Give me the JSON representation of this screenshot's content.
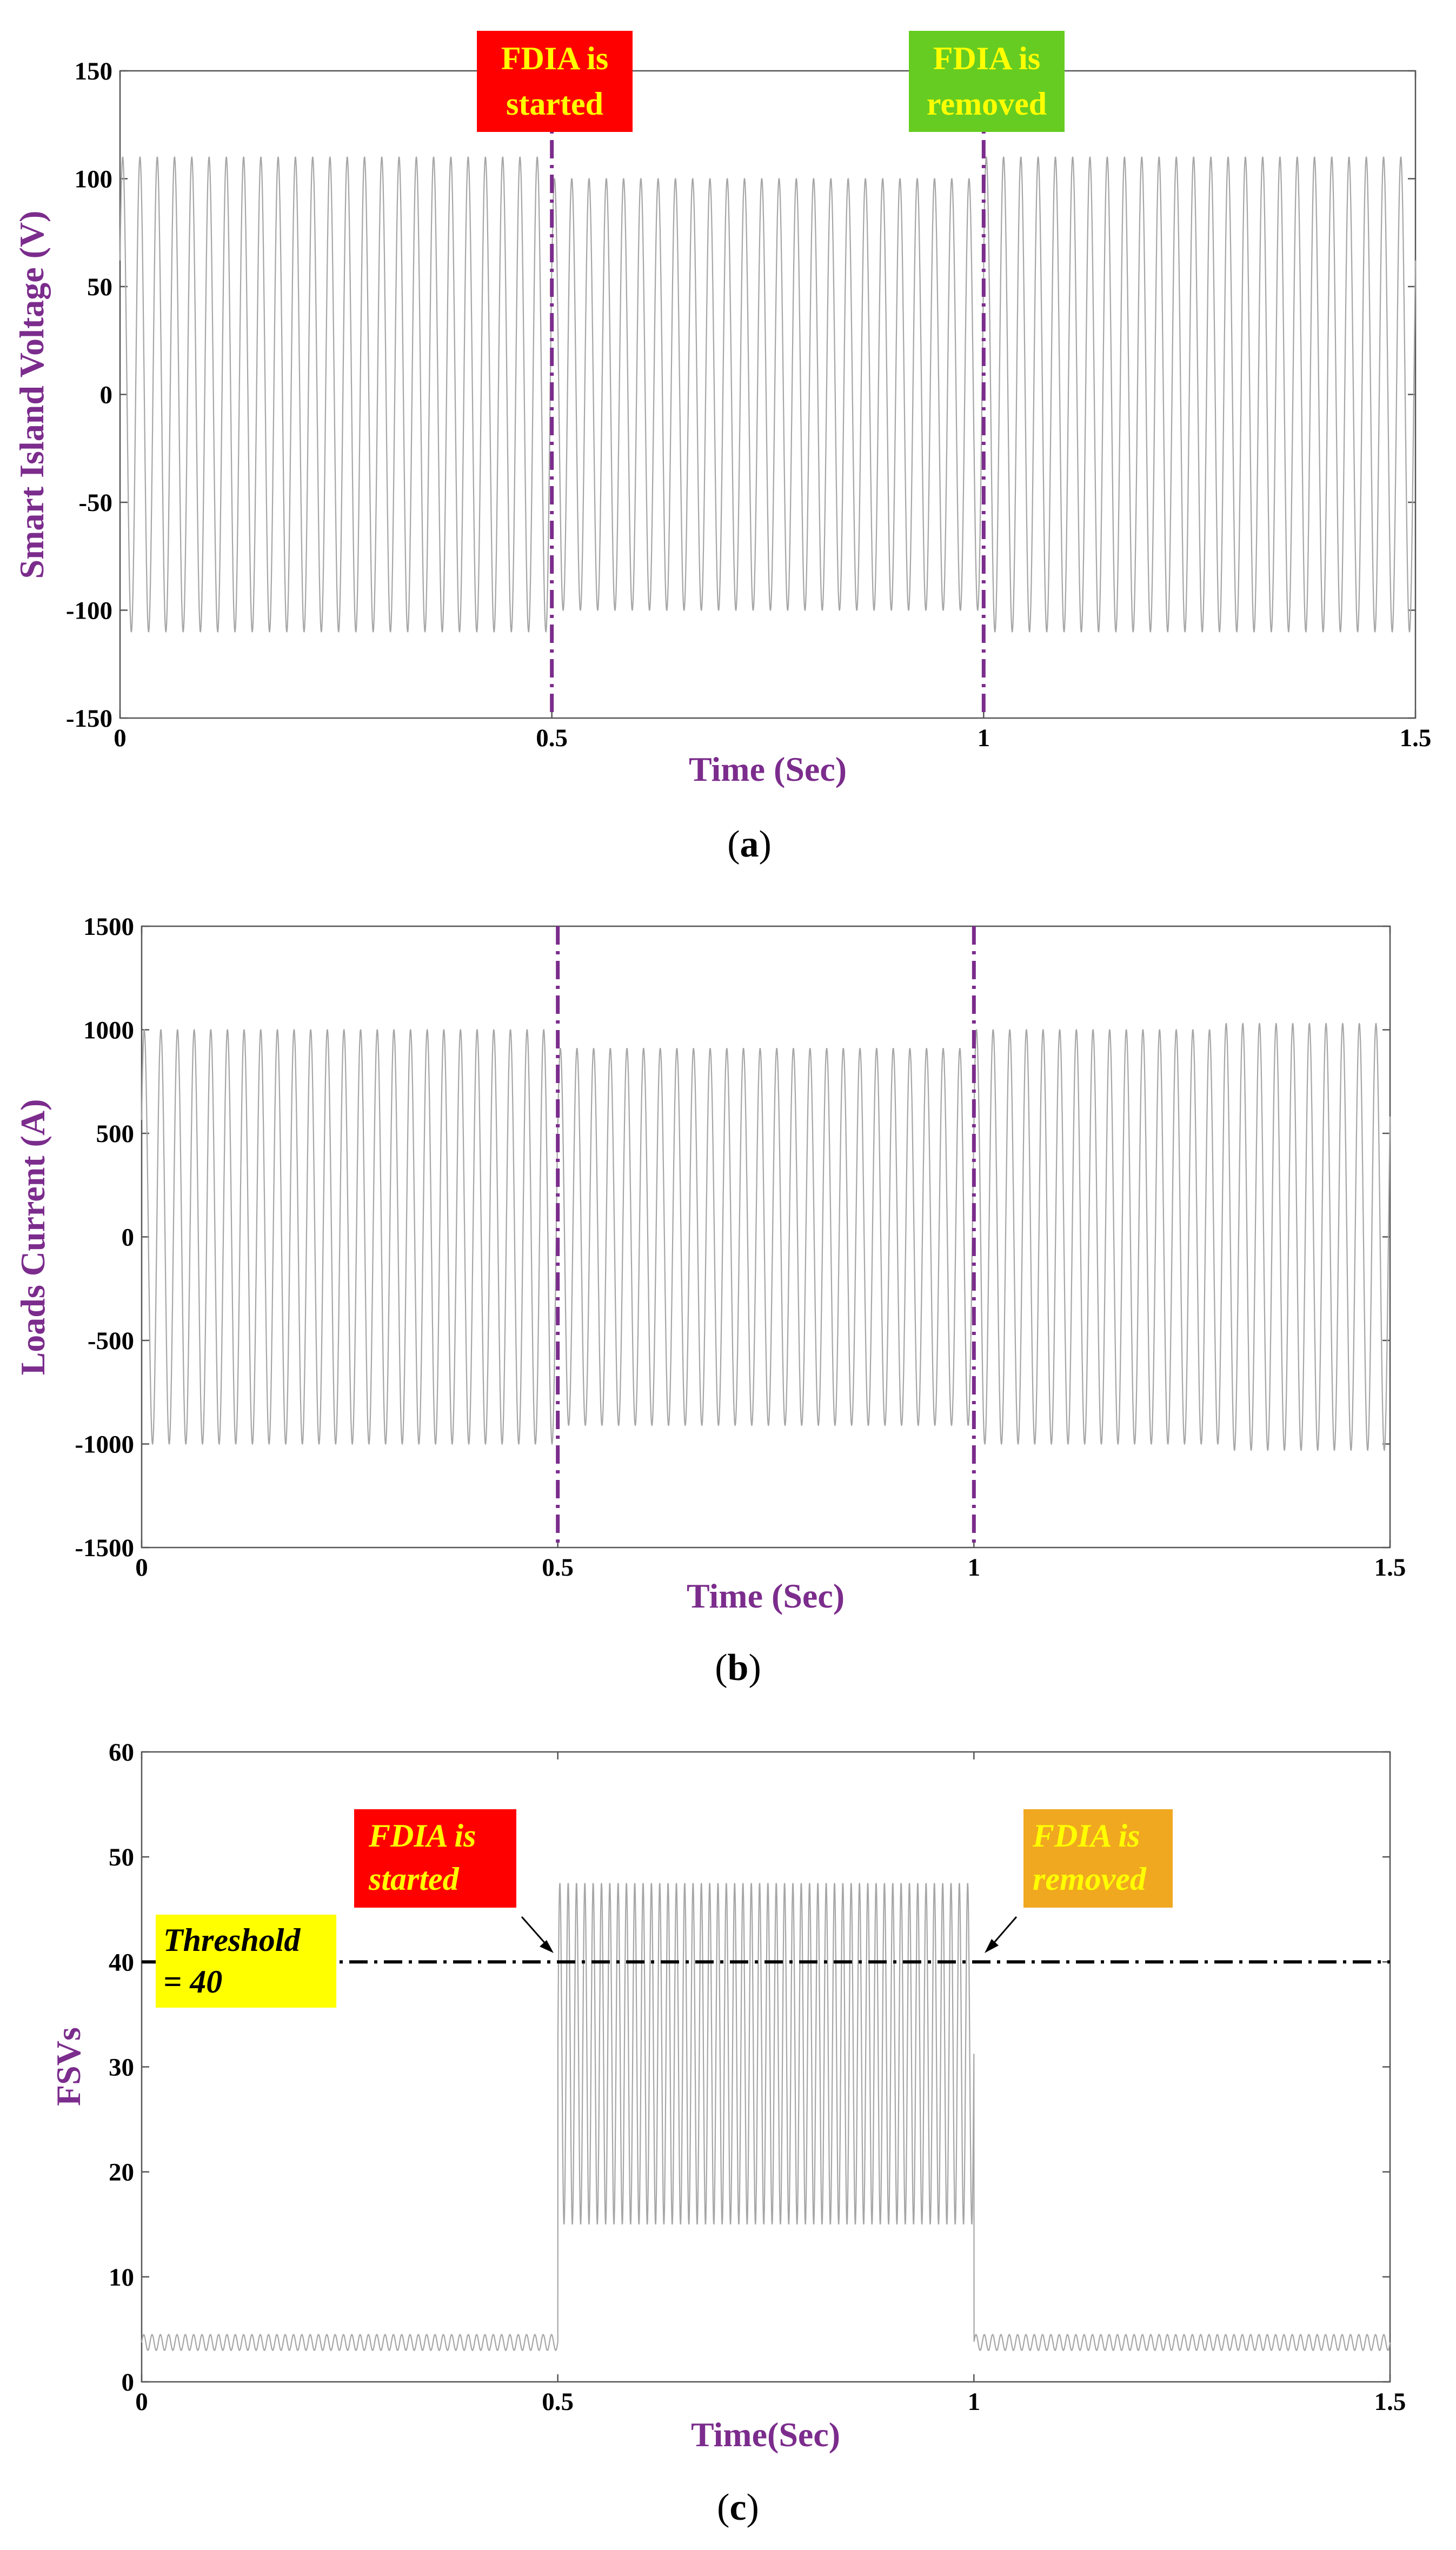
{
  "colors": {
    "signal": "#a6a6a6",
    "event_line": "#7b2c8c",
    "axis_label": "#7b2c8c",
    "threshold_line": "#000000",
    "red_box": "#ff0000",
    "green_box": "#66cc22",
    "yellow_box": "#ffff00",
    "orange_box": "#f0a820",
    "yellow_text": "#ffff00",
    "orange_text": "#ffff00"
  },
  "chart_data": [
    {
      "id": "a",
      "type": "line",
      "caption": "a",
      "xlabel": "Time (Sec)",
      "ylabel": "Smart Island Voltage (V)",
      "xlim": [
        0,
        1.5
      ],
      "ylim": [
        -150,
        150
      ],
      "xticks": [
        "0",
        "0.5",
        "1",
        "1.5"
      ],
      "xtick_values": [
        0,
        0.5,
        1,
        1.5
      ],
      "yticks": [
        "150",
        "100",
        "50",
        "0",
        "-50",
        "-100",
        "-150"
      ],
      "ytick_values": [
        150,
        100,
        50,
        0,
        -50,
        -100,
        -150
      ],
      "events": [
        0.5,
        1.0
      ],
      "series": [
        {
          "name": "voltage",
          "kind": "sine",
          "frequency_hz": 50,
          "segments": [
            {
              "from": 0,
              "to": 0.5,
              "amplitude": 110
            },
            {
              "from": 0.5,
              "to": 1.0,
              "amplitude": 100
            },
            {
              "from": 1.0,
              "to": 1.5,
              "amplitude": 110
            }
          ]
        }
      ],
      "annotations": [
        {
          "lines": [
            "FDIA is",
            "started"
          ],
          "style": "red"
        },
        {
          "lines": [
            "FDIA is",
            "removed"
          ],
          "style": "green"
        }
      ]
    },
    {
      "id": "b",
      "type": "line",
      "caption": "b",
      "xlabel": "Time (Sec)",
      "ylabel": "Loads Current (A)",
      "xlim": [
        0,
        1.5
      ],
      "ylim": [
        -1500,
        1500
      ],
      "xticks": [
        "0",
        "0.5",
        "1",
        "1.5"
      ],
      "xtick_values": [
        0,
        0.5,
        1,
        1.5
      ],
      "yticks": [
        "1500",
        "1000",
        "500",
        "0",
        "-500",
        "-1000",
        "-1500"
      ],
      "ytick_values": [
        1500,
        1000,
        500,
        0,
        -500,
        -1000,
        -1500
      ],
      "events": [
        0.5,
        1.0
      ],
      "series": [
        {
          "name": "current",
          "kind": "sine",
          "frequency_hz": 50,
          "segments": [
            {
              "from": 0,
              "to": 0.5,
              "amplitude": 1000
            },
            {
              "from": 0.5,
              "to": 1.0,
              "amplitude": 910
            },
            {
              "from": 1.0,
              "to": 1.3,
              "amplitude": 1000
            },
            {
              "from": 1.3,
              "to": 1.5,
              "amplitude": 1030
            }
          ]
        }
      ],
      "annotations": []
    },
    {
      "id": "c",
      "type": "line",
      "caption": "c",
      "xlabel": "Time(Sec)",
      "ylabel": "FSVs",
      "xlim": [
        0,
        1.5
      ],
      "ylim": [
        0,
        60
      ],
      "xticks": [
        "0",
        "0.5",
        "1",
        "1.5"
      ],
      "xtick_values": [
        0,
        0.5,
        1,
        1.5
      ],
      "yticks": [
        "60",
        "50",
        "40",
        "30",
        "20",
        "10",
        "0"
      ],
      "ytick_values": [
        60,
        50,
        40,
        30,
        20,
        10,
        0
      ],
      "threshold": 40,
      "series": [
        {
          "name": "FSVs",
          "kind": "oscillation",
          "frequency_hz": 100,
          "segments": [
            {
              "from": 0,
              "to": 0.5,
              "low": 3,
              "high": 4.5
            },
            {
              "from": 0.5,
              "to": 1.0,
              "low": 15,
              "high": 47.5
            },
            {
              "from": 1.0,
              "to": 1.5,
              "low": 3,
              "high": 4.5
            }
          ]
        }
      ],
      "annotations": [
        {
          "lines": [
            "FDIA is",
            "started"
          ],
          "style": "red-italic"
        },
        {
          "lines": [
            "FDIA is",
            "removed"
          ],
          "style": "orange-italic"
        },
        {
          "lines": [
            "Threshold",
            "= 40"
          ],
          "style": "yellow-italic"
        }
      ]
    }
  ]
}
